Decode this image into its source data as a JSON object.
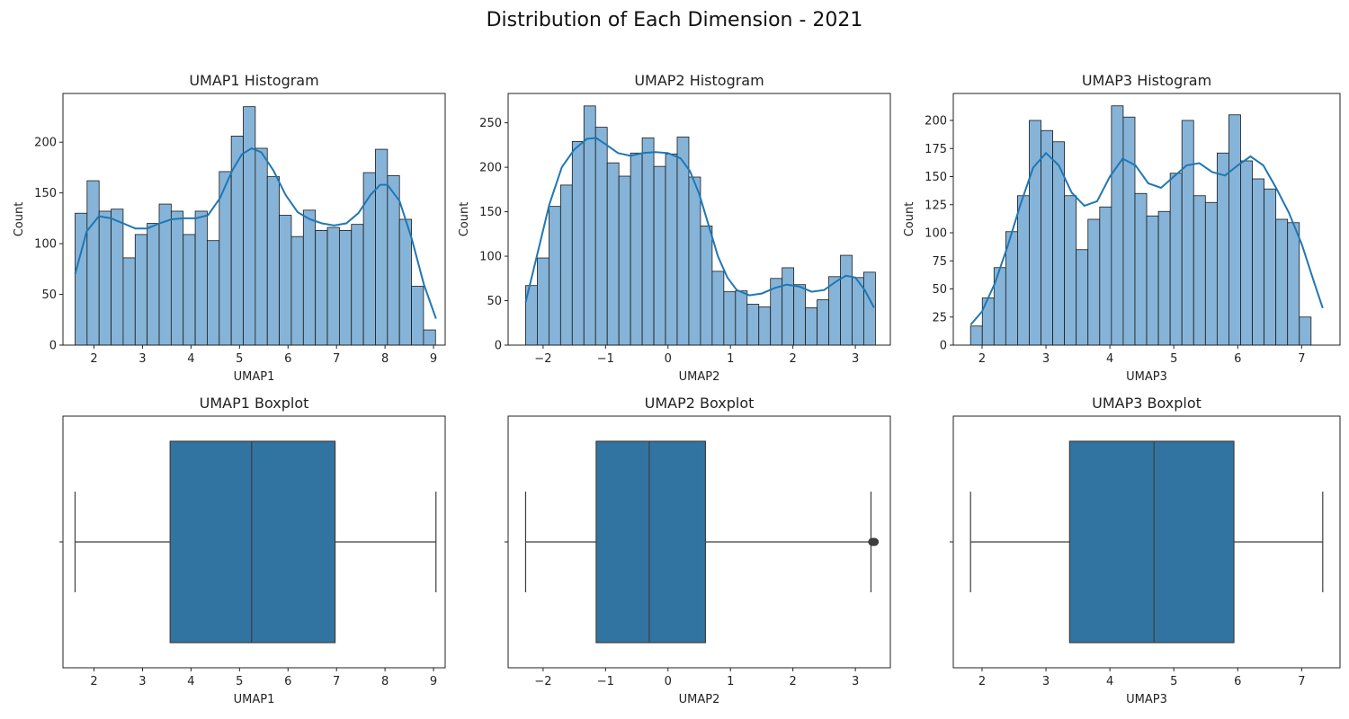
{
  "figure": {
    "suptitle": "Distribution of Each Dimension - 2021"
  },
  "colors": {
    "bar_fill": "#86b4d8",
    "bar_edge": "#1a1a1a",
    "kde_line": "#1f77b4",
    "box_fill": "#3274a1",
    "box_line": "#3d3d3d"
  },
  "chart_data": [
    {
      "type": "bar",
      "title": "UMAP1 Histogram",
      "xlabel": "UMAP1",
      "ylabel": "Count",
      "xlim": [
        1.36,
        9.24
      ],
      "ylim": [
        0,
        248
      ],
      "xticks": [
        2,
        3,
        4,
        5,
        6,
        7,
        8,
        9
      ],
      "yticks": [
        0,
        50,
        100,
        150,
        200
      ],
      "bin_start": 1.61,
      "bin_width": 0.2477,
      "counts": [
        130,
        162,
        132,
        134,
        86,
        109,
        120,
        139,
        132,
        109,
        132,
        103,
        171,
        206,
        235,
        194,
        166,
        128,
        107,
        133,
        113,
        116,
        113,
        119,
        170,
        193,
        167,
        124,
        58,
        15
      ],
      "kde": [
        [
          1.61,
          70
        ],
        [
          1.85,
          112
        ],
        [
          2.1,
          127
        ],
        [
          2.35,
          125
        ],
        [
          2.6,
          120
        ],
        [
          2.85,
          115
        ],
        [
          3.1,
          115
        ],
        [
          3.35,
          120
        ],
        [
          3.6,
          124
        ],
        [
          3.85,
          125
        ],
        [
          4.1,
          125
        ],
        [
          4.35,
          128
        ],
        [
          4.6,
          145
        ],
        [
          4.85,
          172
        ],
        [
          5.05,
          188
        ],
        [
          5.25,
          194
        ],
        [
          5.45,
          190
        ],
        [
          5.7,
          172
        ],
        [
          5.95,
          148
        ],
        [
          6.2,
          131
        ],
        [
          6.45,
          124
        ],
        [
          6.7,
          120
        ],
        [
          6.95,
          118
        ],
        [
          7.2,
          120
        ],
        [
          7.45,
          130
        ],
        [
          7.7,
          148
        ],
        [
          7.9,
          158
        ],
        [
          8.05,
          158
        ],
        [
          8.3,
          142
        ],
        [
          8.55,
          105
        ],
        [
          8.8,
          60
        ],
        [
          9.05,
          26
        ]
      ]
    },
    {
      "type": "bar",
      "title": "UMAP2 Histogram",
      "xlabel": "UMAP2",
      "ylabel": "Count",
      "xlim": [
        -2.56,
        3.56
      ],
      "ylim": [
        0,
        283
      ],
      "xticks": [
        -2,
        -1,
        0,
        1,
        2,
        3
      ],
      "yticks": [
        0,
        50,
        100,
        150,
        200,
        250
      ],
      "bin_start": -2.28,
      "bin_width": 0.1867,
      "counts": [
        67,
        98,
        156,
        180,
        229,
        269,
        245,
        205,
        190,
        216,
        233,
        201,
        215,
        234,
        189,
        134,
        83,
        60,
        61,
        46,
        43,
        75,
        87,
        68,
        42,
        51,
        77,
        101,
        76,
        82
      ],
      "kde": [
        [
          -2.28,
          48
        ],
        [
          -2.1,
          100
        ],
        [
          -1.9,
          158
        ],
        [
          -1.7,
          200
        ],
        [
          -1.5,
          220
        ],
        [
          -1.3,
          232
        ],
        [
          -1.15,
          233
        ],
        [
          -1.0,
          226
        ],
        [
          -0.8,
          216
        ],
        [
          -0.6,
          213
        ],
        [
          -0.4,
          216
        ],
        [
          -0.2,
          217
        ],
        [
          0.0,
          216
        ],
        [
          0.2,
          210
        ],
        [
          0.35,
          196
        ],
        [
          0.5,
          170
        ],
        [
          0.65,
          135
        ],
        [
          0.8,
          100
        ],
        [
          0.95,
          76
        ],
        [
          1.1,
          62
        ],
        [
          1.3,
          56
        ],
        [
          1.5,
          58
        ],
        [
          1.7,
          64
        ],
        [
          1.9,
          68
        ],
        [
          2.1,
          66
        ],
        [
          2.3,
          60
        ],
        [
          2.5,
          62
        ],
        [
          2.7,
          72
        ],
        [
          2.85,
          78
        ],
        [
          3.0,
          76
        ],
        [
          3.15,
          62
        ],
        [
          3.3,
          42
        ]
      ]
    },
    {
      "type": "bar",
      "title": "UMAP3 Histogram",
      "xlabel": "UMAP3",
      "ylabel": "Count",
      "xlim": [
        1.55,
        7.6
      ],
      "ylim": [
        0,
        224
      ],
      "xticks": [
        2,
        3,
        4,
        5,
        6,
        7
      ],
      "yticks": [
        0,
        25,
        50,
        75,
        100,
        125,
        150,
        175,
        200
      ],
      "bin_start": 1.82,
      "bin_width": 0.1837,
      "counts": [
        17,
        42,
        69,
        101,
        133,
        200,
        191,
        181,
        133,
        85,
        112,
        123,
        213,
        203,
        135,
        115,
        119,
        153,
        200,
        133,
        127,
        171,
        205,
        164,
        148,
        139,
        112,
        109,
        25,
        0
      ],
      "kde": [
        [
          1.82,
          18
        ],
        [
          2.0,
          30
        ],
        [
          2.2,
          55
        ],
        [
          2.4,
          88
        ],
        [
          2.6,
          125
        ],
        [
          2.8,
          158
        ],
        [
          3.0,
          171
        ],
        [
          3.2,
          160
        ],
        [
          3.4,
          136
        ],
        [
          3.6,
          124
        ],
        [
          3.8,
          128
        ],
        [
          4.0,
          150
        ],
        [
          4.2,
          166
        ],
        [
          4.4,
          160
        ],
        [
          4.6,
          144
        ],
        [
          4.8,
          140
        ],
        [
          5.0,
          150
        ],
        [
          5.2,
          160
        ],
        [
          5.4,
          162
        ],
        [
          5.6,
          154
        ],
        [
          5.8,
          151
        ],
        [
          6.0,
          160
        ],
        [
          6.2,
          168
        ],
        [
          6.4,
          160
        ],
        [
          6.6,
          140
        ],
        [
          6.8,
          118
        ],
        [
          7.0,
          90
        ],
        [
          7.2,
          55
        ],
        [
          7.33,
          33
        ]
      ]
    },
    {
      "type": "box",
      "title": "UMAP1 Boxplot",
      "xlabel": "UMAP1",
      "xlim": [
        1.36,
        9.24
      ],
      "xticks": [
        2,
        3,
        4,
        5,
        6,
        7,
        8,
        9
      ],
      "whisker_low": 1.61,
      "q1": 3.57,
      "median": 5.25,
      "q3": 6.97,
      "whisker_high": 9.05,
      "outliers": []
    },
    {
      "type": "box",
      "title": "UMAP2 Boxplot",
      "xlabel": "UMAP2",
      "xlim": [
        -2.56,
        3.56
      ],
      "xticks": [
        -2,
        -1,
        0,
        1,
        2,
        3
      ],
      "whisker_low": -2.28,
      "q1": -1.15,
      "median": -0.3,
      "q3": 0.6,
      "whisker_high": 3.25,
      "outliers": [
        3.27,
        3.29,
        3.31
      ]
    },
    {
      "type": "box",
      "title": "UMAP3 Boxplot",
      "xlabel": "UMAP3",
      "xlim": [
        1.55,
        7.6
      ],
      "xticks": [
        2,
        3,
        4,
        5,
        6,
        7
      ],
      "whisker_low": 1.82,
      "q1": 3.37,
      "median": 4.69,
      "q3": 5.94,
      "whisker_high": 7.33,
      "outliers": []
    }
  ]
}
